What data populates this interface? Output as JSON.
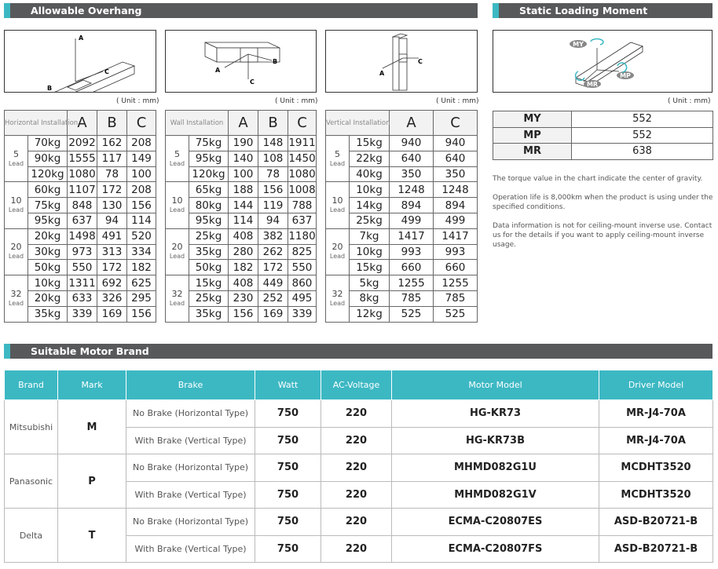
{
  "overhang": {
    "title": "Allowable Overhang",
    "unit": "( Unit : mm)",
    "diagrams": [
      {
        "labels": [
          "A",
          "B",
          "C"
        ]
      },
      {
        "labels": [
          "A",
          "B",
          "C"
        ]
      },
      {
        "labels": [
          "A",
          "C"
        ]
      }
    ],
    "tables": [
      {
        "label": "Horizontal Installation",
        "columns": [
          "A",
          "B",
          "C"
        ],
        "lead_label": "Lead",
        "groups": [
          {
            "lead": "5",
            "rows": [
              [
                "70kg",
                2092,
                162,
                208
              ],
              [
                "90kg",
                1555,
                117,
                149
              ],
              [
                "120kg",
                1080,
                78,
                100
              ]
            ]
          },
          {
            "lead": "10",
            "rows": [
              [
                "60kg",
                1107,
                172,
                208
              ],
              [
                "75kg",
                848,
                130,
                156
              ],
              [
                "95kg",
                637,
                94,
                114
              ]
            ]
          },
          {
            "lead": "20",
            "rows": [
              [
                "20kg",
                1498,
                491,
                520
              ],
              [
                "30kg",
                973,
                313,
                334
              ],
              [
                "50kg",
                550,
                172,
                182
              ]
            ]
          },
          {
            "lead": "32",
            "rows": [
              [
                "10kg",
                1311,
                692,
                625
              ],
              [
                "20kg",
                633,
                326,
                295
              ],
              [
                "35kg",
                339,
                169,
                156
              ]
            ]
          }
        ]
      },
      {
        "label": "Wall Installation",
        "columns": [
          "A",
          "B",
          "C"
        ],
        "lead_label": "Lead",
        "groups": [
          {
            "lead": "5",
            "rows": [
              [
                "75kg",
                190,
                148,
                1911
              ],
              [
                "95kg",
                140,
                108,
                1450
              ],
              [
                "120kg",
                100,
                78,
                1080
              ]
            ]
          },
          {
            "lead": "10",
            "rows": [
              [
                "65kg",
                188,
                156,
                1008
              ],
              [
                "80kg",
                144,
                119,
                788
              ],
              [
                "95kg",
                114,
                94,
                637
              ]
            ]
          },
          {
            "lead": "20",
            "rows": [
              [
                "25kg",
                408,
                382,
                1180
              ],
              [
                "35kg",
                280,
                262,
                825
              ],
              [
                "50kg",
                182,
                172,
                550
              ]
            ]
          },
          {
            "lead": "32",
            "rows": [
              [
                "15kg",
                408,
                449,
                860
              ],
              [
                "25kg",
                230,
                252,
                495
              ],
              [
                "35kg",
                156,
                169,
                339
              ]
            ]
          }
        ]
      },
      {
        "label": "Vertical Installation",
        "columns": [
          "A",
          "C"
        ],
        "lead_label": "Lead",
        "groups": [
          {
            "lead": "5",
            "rows": [
              [
                "15kg",
                940,
                940
              ],
              [
                "22kg",
                640,
                640
              ],
              [
                "40kg",
                350,
                350
              ]
            ]
          },
          {
            "lead": "10",
            "rows": [
              [
                "10kg",
                1248,
                1248
              ],
              [
                "14kg",
                894,
                894
              ],
              [
                "25kg",
                499,
                499
              ]
            ]
          },
          {
            "lead": "20",
            "rows": [
              [
                "7kg",
                1417,
                1417
              ],
              [
                "10kg",
                993,
                993
              ],
              [
                "15kg",
                660,
                660
              ]
            ]
          },
          {
            "lead": "32",
            "rows": [
              [
                "5kg",
                1255,
                1255
              ],
              [
                "8kg",
                785,
                785
              ],
              [
                "12kg",
                525,
                525
              ]
            ]
          }
        ]
      }
    ]
  },
  "static": {
    "title": "Static Loading Moment",
    "unit": "( Unit : mm)",
    "diagram_labels": [
      "MY",
      "MR",
      "MP"
    ],
    "rows": [
      [
        "MY",
        552
      ],
      [
        "MP",
        552
      ],
      [
        "MR",
        638
      ]
    ],
    "notes": [
      "The torque value in the chart indicate the center of gravity.",
      "Operation life is 8,000km when the product is using under the specified conditions.",
      "Data information is not for ceiling-mount inverse use. Contact us for the details if you want to apply ceiling-mount inverse usage."
    ]
  },
  "motor": {
    "title": "Suitable Motor Brand",
    "columns": [
      "Brand",
      "Mark",
      "Brake",
      "Watt",
      "AC-Voltage",
      "Motor Model",
      "Driver Model"
    ],
    "brands": [
      {
        "brand": "Mitsubishi",
        "mark": "M",
        "rows": [
          [
            "No Brake (Horizontal Type)",
            750,
            220,
            "HG-KR73",
            "MR-J4-70A"
          ],
          [
            "With Brake (Vertical Type)",
            750,
            220,
            "HG-KR73B",
            "MR-J4-70A"
          ]
        ]
      },
      {
        "brand": "Panasonic",
        "mark": "P",
        "rows": [
          [
            "No Brake (Horizontal Type)",
            750,
            220,
            "MHMD082G1U",
            "MCDHT3520"
          ],
          [
            "With Brake (Vertical Type)",
            750,
            220,
            "MHMD082G1V",
            "MCDHT3520"
          ]
        ]
      },
      {
        "brand": "Delta",
        "mark": "T",
        "rows": [
          [
            "No Brake (Horizontal Type)",
            750,
            220,
            "ECMA-C20807ES",
            "ASD-B20721-B"
          ],
          [
            "With Brake (Vertical Type)",
            750,
            220,
            "ECMA-C20807FS",
            "ASD-B20721-B"
          ]
        ]
      }
    ]
  }
}
